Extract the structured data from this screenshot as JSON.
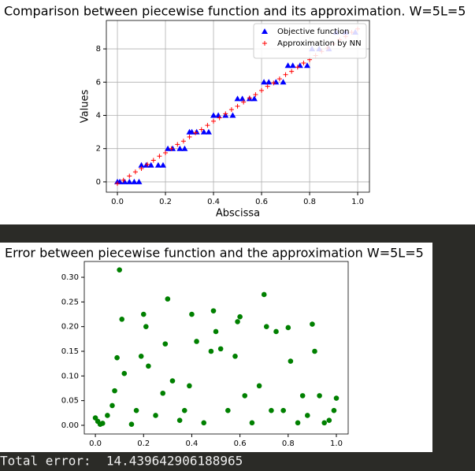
{
  "chart_data": [
    {
      "type": "scatter",
      "title": "Comparison between piecewise function and its approximation. W=5L=5",
      "x_label": "Abscissa",
      "y_label": "Values",
      "xlim": [
        -0.046,
        1.049
      ],
      "ylim": [
        -0.62,
        9.71
      ],
      "xticks": [
        {
          "value": 0,
          "label": "0.0"
        },
        0.2,
        0.4,
        0.6,
        0.8,
        {
          "value": 1,
          "label": "1.0"
        }
      ],
      "yticks": [
        0,
        2,
        4,
        6,
        8
      ],
      "ytick_color": "#0000ff",
      "grid": true,
      "legend": "upper right",
      "series": [
        {
          "name": "Objective function",
          "color": "#0000ff",
          "marker": "^",
          "x": [
            0.0,
            0.01,
            0.03,
            0.05,
            0.07,
            0.09,
            0.1,
            0.12,
            0.14,
            0.17,
            0.19,
            0.21,
            0.23,
            0.26,
            0.28,
            0.3,
            0.31,
            0.33,
            0.36,
            0.38,
            0.4,
            0.42,
            0.45,
            0.48,
            0.5,
            0.52,
            0.55,
            0.57,
            0.61,
            0.63,
            0.66,
            0.69,
            0.71,
            0.73,
            0.76,
            0.79,
            0.81,
            0.84,
            0.88,
            0.91,
            0.95,
            0.99
          ],
          "values": [
            0,
            0,
            0,
            0,
            0,
            0,
            1,
            1,
            1,
            1,
            1,
            2,
            2,
            2,
            2,
            3,
            3,
            3,
            3,
            3,
            4,
            4,
            4,
            4,
            5,
            5,
            5,
            5,
            6,
            6,
            6,
            6,
            7,
            7,
            7,
            7,
            8,
            8,
            8,
            9,
            9,
            9
          ]
        },
        {
          "name": "Approximation by NN",
          "color": "#ff0000",
          "marker": "+",
          "x": [
            0.0,
            0.025,
            0.05,
            0.075,
            0.1,
            0.125,
            0.15,
            0.175,
            0.2,
            0.225,
            0.25,
            0.275,
            0.3,
            0.325,
            0.35,
            0.375,
            0.4,
            0.425,
            0.45,
            0.475,
            0.5,
            0.525,
            0.55,
            0.575,
            0.6,
            0.625,
            0.65,
            0.675,
            0.7,
            0.725,
            0.75,
            0.775,
            0.8,
            0.825,
            0.85,
            0.875,
            0.9,
            0.925,
            0.95,
            0.975,
            1.0
          ],
          "values": [
            -0.1,
            0.1,
            0.35,
            0.6,
            0.8,
            1.05,
            1.3,
            1.55,
            1.75,
            2.0,
            2.25,
            2.45,
            2.7,
            2.95,
            3.15,
            3.4,
            3.65,
            3.85,
            4.1,
            4.35,
            4.55,
            4.8,
            5.05,
            5.25,
            5.5,
            5.75,
            5.95,
            6.2,
            6.45,
            6.65,
            6.9,
            7.15,
            7.35,
            7.6,
            7.85,
            8.05,
            8.3,
            8.55,
            8.75,
            9.0,
            9.2
          ]
        }
      ]
    },
    {
      "type": "scatter",
      "title": "Error between piecewise function and the approximation W=5L=5",
      "xlim": [
        -0.046,
        1.049
      ],
      "ylim": [
        -0.0176,
        0.332
      ],
      "xticks": [
        {
          "value": 0,
          "label": "0.0"
        },
        0.2,
        0.4,
        0.6,
        0.8,
        {
          "value": 1,
          "label": "1.0"
        }
      ],
      "yticks": [
        {
          "value": 0,
          "label": "0.00"
        },
        0.05,
        {
          "value": 0.1,
          "label": "0.10"
        },
        0.15,
        {
          "value": 0.2,
          "label": "0.20"
        },
        0.25,
        {
          "value": 0.3,
          "label": "0.30"
        }
      ],
      "grid": false,
      "series": [
        {
          "color": "#008000",
          "marker": "o",
          "x": [
            0.0,
            0.01,
            0.02,
            0.03,
            0.05,
            0.07,
            0.08,
            0.09,
            0.1,
            0.11,
            0.12,
            0.15,
            0.17,
            0.19,
            0.2,
            0.21,
            0.22,
            0.25,
            0.28,
            0.29,
            0.3,
            0.32,
            0.35,
            0.37,
            0.39,
            0.4,
            0.42,
            0.45,
            0.48,
            0.49,
            0.5,
            0.52,
            0.55,
            0.58,
            0.59,
            0.6,
            0.62,
            0.65,
            0.68,
            0.7,
            0.71,
            0.73,
            0.75,
            0.78,
            0.8,
            0.81,
            0.84,
            0.86,
            0.88,
            0.9,
            0.91,
            0.93,
            0.95,
            0.97,
            0.99,
            1.0
          ],
          "values": [
            0.015,
            0.008,
            0.002,
            0.004,
            0.02,
            0.04,
            0.07,
            0.137,
            0.315,
            0.215,
            0.105,
            0.002,
            0.03,
            0.14,
            0.225,
            0.2,
            0.12,
            0.02,
            0.065,
            0.165,
            0.256,
            0.09,
            0.01,
            0.03,
            0.08,
            0.225,
            0.17,
            0.005,
            0.15,
            0.232,
            0.19,
            0.155,
            0.03,
            0.14,
            0.21,
            0.22,
            0.06,
            0.005,
            0.08,
            0.265,
            0.2,
            0.03,
            0.19,
            0.03,
            0.198,
            0.13,
            0.005,
            0.06,
            0.02,
            0.205,
            0.15,
            0.06,
            0.005,
            0.01,
            0.03,
            0.055
          ]
        }
      ]
    }
  ],
  "output": {
    "text": "Total error:  14.439642906188965"
  }
}
